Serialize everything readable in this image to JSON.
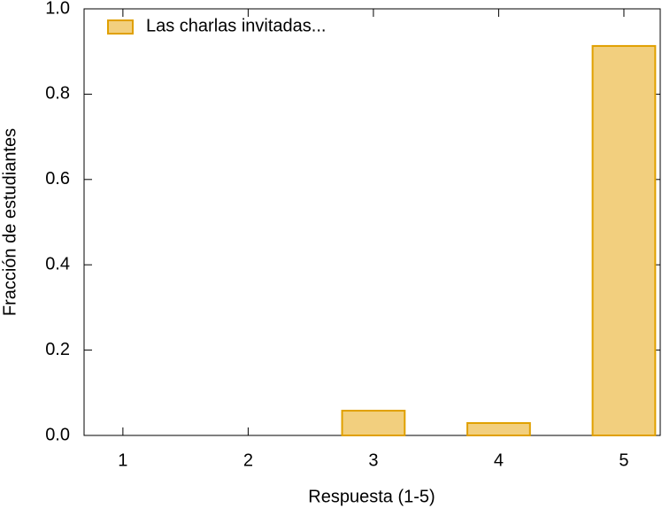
{
  "chart_data": {
    "type": "bar",
    "x": [
      1,
      2,
      3,
      4,
      5
    ],
    "series": [
      {
        "name": "Las charlas invitadas...",
        "color": "#f2cf7e",
        "values": [
          0,
          0,
          0.058,
          0.029,
          0.913
        ]
      }
    ],
    "xlabel": "Respuesta (1-5)",
    "ylabel": "Fracción de estudiantes",
    "xlim": [
      0.69,
      5.29
    ],
    "xticks": [
      1,
      2,
      3,
      4,
      5
    ],
    "ylim": [
      0,
      1
    ],
    "yticks": [
      {
        "value": 0,
        "label": "0.0"
      },
      {
        "value": 0.2,
        "label": "0.2"
      },
      {
        "value": 0.4,
        "label": "0.4"
      },
      {
        "value": 0.6,
        "label": "0.6"
      },
      {
        "value": 0.8,
        "label": "0.8"
      },
      {
        "value": 1,
        "label": "1.0"
      }
    ],
    "legend": "top-left"
  }
}
